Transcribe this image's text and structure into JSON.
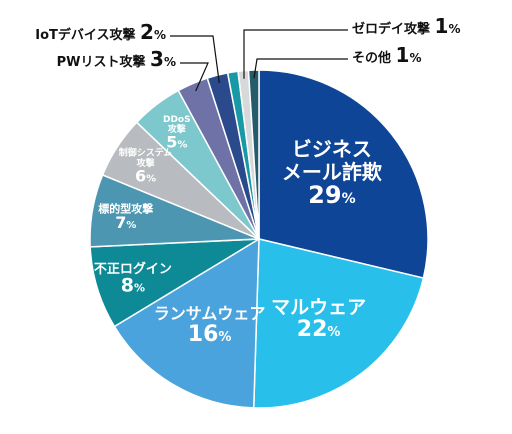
{
  "chart_data": {
    "type": "pie",
    "slices": [
      {
        "label": "ビジネス\nメール詐欺",
        "value": 29,
        "color": "#0e4596"
      },
      {
        "label": "マルウェア",
        "value": 22,
        "color": "#28bfea"
      },
      {
        "label": "ランサムウェア",
        "value": 16,
        "color": "#4aa3dc"
      },
      {
        "label": "不正ログイン",
        "value": 8,
        "color": "#0e8a97"
      },
      {
        "label": "標的型攻撃",
        "value": 7,
        "color": "#4d96b2"
      },
      {
        "label": "制御システム\n攻撃",
        "value": 6,
        "color": "#b8bbbf"
      },
      {
        "label": "DDoS\n攻撃",
        "value": 5,
        "color": "#7dc8cc"
      },
      {
        "label": "PWリスト攻撃",
        "value": 3,
        "color": "#6e72a6"
      },
      {
        "label": "IoTデバイス攻撃",
        "value": 2,
        "color": "#2b4a8c"
      },
      {
        "label": "",
        "value": 1,
        "color": "#1799a6"
      },
      {
        "label": "ゼロデイ攻撃",
        "value": 1,
        "color": "#d6d8da"
      },
      {
        "label": "その他",
        "value": 1,
        "color": "#245c6c"
      }
    ],
    "value_suffix": "%",
    "start_angle_deg": 0,
    "direction": "clockwise"
  }
}
